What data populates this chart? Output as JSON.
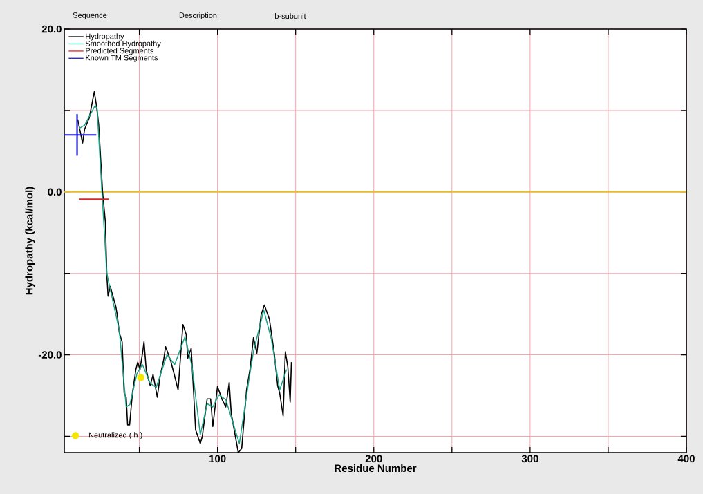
{
  "chart_data": {
    "type": "line",
    "xlabel": "Residue Number",
    "ylabel": "Hydropathy (kcal/mol)",
    "annotations": [
      "Sequence",
      "Description:",
      "b-subunit"
    ],
    "xlim": [
      2,
      400
    ],
    "ylim": [
      -32,
      20
    ],
    "xticks": [
      {
        "value": 50,
        "label": null
      },
      100,
      {
        "value": 150,
        "label": null
      },
      200,
      {
        "value": 250,
        "label": null
      },
      300,
      {
        "value": 350,
        "label": null
      },
      400
    ],
    "yticks": [
      {
        "value": -30,
        "label": null
      },
      {
        "value": -20,
        "label": "-20.0"
      },
      {
        "value": -10,
        "label": null
      },
      {
        "value": 0,
        "label": "0.0"
      },
      {
        "value": 10,
        "label": null
      },
      {
        "value": 20,
        "label": "20.0"
      }
    ],
    "grid": true,
    "legend": "top left",
    "ref_lines": [
      {
        "axis": "y",
        "value": 0,
        "color": "#f5c000"
      }
    ],
    "series": [
      {
        "name": "Hydropathy",
        "color": "#000000",
        "x": [
          10.6,
          13.7,
          15,
          18,
          21.2,
          22.6,
          24,
          26.5,
          28.3,
          29.2,
          30,
          31.4,
          35,
          35.8,
          37.2,
          39,
          40.3,
          41.6,
          42.5,
          43.8,
          45.6,
          47.8,
          49,
          50.4,
          52.2,
          53,
          54.4,
          55.8,
          57,
          58.8,
          61.5,
          63.3,
          65.5,
          66.8,
          70,
          72.6,
          74.8,
          77.9,
          80,
          81,
          83.2,
          86,
          89,
          90.3,
          93.4,
          95.6,
          97,
          100,
          103,
          105.3,
          107.5,
          108.8,
          113.3,
          115.5,
          118.6,
          120.8,
          123,
          125.2,
          127.9,
          130,
          133.2,
          136.3,
          138.5,
          139.8,
          142,
          143.4,
          145,
          146.5,
          147.3
        ],
        "values": [
          8.9,
          6.0,
          7.7,
          9.1,
          12.3,
          10.6,
          8.3,
          0,
          -3.7,
          -10.2,
          -12.8,
          -11.6,
          -14.1,
          -15,
          -17.3,
          -18.4,
          -24.7,
          -25.2,
          -28.6,
          -28.6,
          -24.7,
          -21.8,
          -20.9,
          -21.8,
          -19.6,
          -18.4,
          -21.8,
          -23,
          -23.8,
          -22.4,
          -25.2,
          -22.6,
          -20.7,
          -19,
          -20.7,
          -22.6,
          -24.3,
          -16.3,
          -17.5,
          -20.4,
          -19.2,
          -29.2,
          -30.9,
          -30,
          -25.4,
          -25.4,
          -28.8,
          -23.9,
          -25.5,
          -26.4,
          -23.4,
          -27.2,
          -32,
          -31.5,
          -24.3,
          -21.8,
          -17.9,
          -19.8,
          -15.1,
          -13.9,
          -15.6,
          -19.8,
          -23.8,
          -24.7,
          -27.5,
          -19.6,
          -21.5,
          -25.8,
          -20.9
        ]
      },
      {
        "name": "Smoothed Hydropathy",
        "color": "#16a085",
        "x": [
          11.5,
          15,
          21.7,
          23,
          26,
          29.2,
          37.2,
          41.6,
          44,
          48.5,
          52,
          57,
          60.8,
          67.7,
          72.6,
          79.2,
          83.6,
          89,
          93.4,
          97,
          100.9,
          105.3,
          114,
          120,
          123,
          129.6,
          134.5,
          139.8,
          144.2
        ],
        "values": [
          7.8,
          8.2,
          10.6,
          10.2,
          0.3,
          -10,
          -17,
          -26.4,
          -26.1,
          -22.3,
          -21.2,
          -23.5,
          -24,
          -20,
          -21.2,
          -17.8,
          -21.3,
          -29.8,
          -26,
          -26.4,
          -24.9,
          -25.5,
          -30.9,
          -23.2,
          -19.6,
          -14.5,
          -18.1,
          -24.3,
          -21.8
        ]
      },
      {
        "name": "Predicted Segments",
        "color": "#e82020",
        "x": [
          11.5,
          30.5
        ],
        "values": [
          -0.9,
          -0.9
        ]
      },
      {
        "name": "Known TM Segments",
        "color": "#1a1ad0",
        "x": [
          2,
          10.2,
          10.2,
          10.2,
          10.2,
          22.5
        ],
        "values": [
          7,
          7,
          9.5,
          4.5,
          7,
          7
        ]
      },
      {
        "name": "Neutralized ( h )",
        "type": "scatter",
        "marker": "circle",
        "color": "#f5e600",
        "x": [
          51
        ],
        "values": [
          -22.8
        ]
      }
    ]
  }
}
